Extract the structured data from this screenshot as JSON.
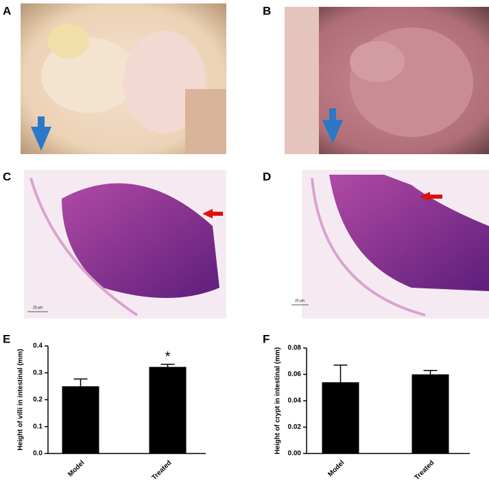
{
  "panels": [
    "A",
    "B",
    "C",
    "D",
    "E",
    "F"
  ],
  "scale_bars": [
    "20 μm",
    "20 μm"
  ],
  "chart_data": [
    {
      "type": "bar",
      "y_label": "Height of villi in intestinal (mm)",
      "categories": [
        "Model",
        "Treated"
      ],
      "values": [
        0.25,
        0.322
      ],
      "errors": [
        0.027,
        0.01
      ],
      "color": "#000000",
      "ylim": [
        0,
        0.4
      ],
      "yticks": [
        {
          "value": 0,
          "label": "0.0"
        },
        0.1,
        0.2,
        0.3,
        0.4
      ],
      "annotations": [
        {
          "category": "Treated",
          "text": "*"
        }
      ]
    },
    {
      "type": "bar",
      "y_label": "Height of crypt in intestinal (mm)",
      "categories": [
        "Model",
        "Treated"
      ],
      "values": [
        0.054,
        0.06
      ],
      "errors": [
        0.013,
        0.003
      ],
      "color": "#000000",
      "ylim": [
        0,
        0.08
      ],
      "yticks": [
        {
          "value": 0,
          "label": "0.00"
        },
        {
          "value": 0.02,
          "label": "0.02"
        },
        {
          "value": 0.04,
          "label": "0.04"
        },
        {
          "value": 0.06,
          "label": "0.06"
        },
        {
          "value": 0.08,
          "label": "0.08"
        }
      ]
    }
  ]
}
